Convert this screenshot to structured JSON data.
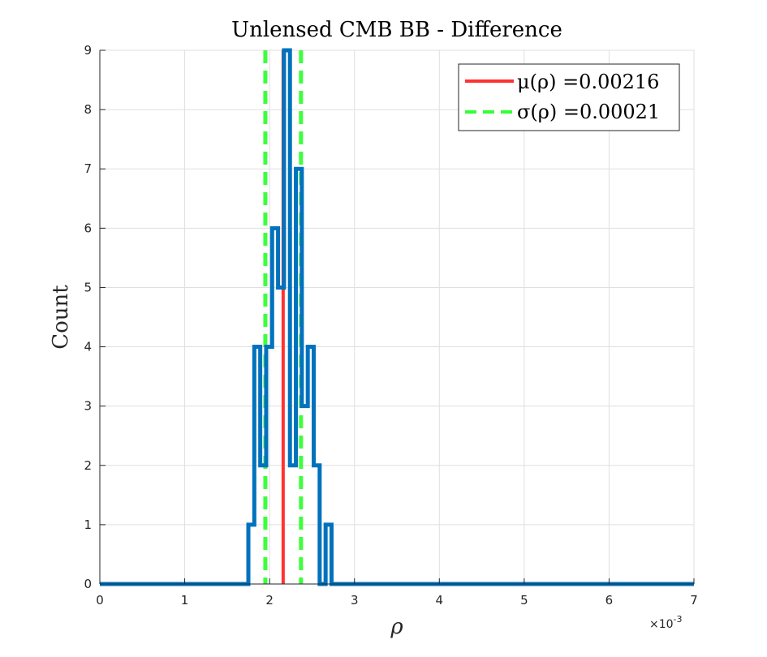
{
  "chart_data": {
    "type": "histogram",
    "title": "Unlensed CMB BB - Difference",
    "xlabel": "ρ",
    "ylabel": "Count",
    "x_exponent_label": "×10",
    "x_exponent_power": "-3",
    "xlim": [
      0,
      0.007
    ],
    "ylim": [
      0,
      9
    ],
    "x_ticks": [
      0,
      0.001,
      0.002,
      0.003,
      0.004,
      0.005,
      0.006,
      0.007
    ],
    "x_tick_labels": [
      "0",
      "1",
      "2",
      "3",
      "4",
      "5",
      "6",
      "7"
    ],
    "y_ticks": [
      0,
      1,
      2,
      3,
      4,
      5,
      6,
      7,
      8,
      9
    ],
    "y_tick_labels": [
      "0",
      "1",
      "2",
      "3",
      "4",
      "5",
      "6",
      "7",
      "8",
      "9"
    ],
    "grid": true,
    "legend_position": "top-right",
    "histogram": {
      "name": "",
      "color": "#0072BD",
      "bin_edges": [
        0,
        0.00175,
        0.00182,
        0.00189,
        0.00196,
        0.00203,
        0.0021,
        0.00217,
        0.00224,
        0.00231,
        0.00238,
        0.00245,
        0.00252,
        0.00259,
        0.00266,
        0.00273,
        0.007
      ],
      "counts": [
        0,
        1,
        4,
        2,
        4,
        6,
        5,
        9,
        2,
        7,
        3,
        4,
        2,
        0,
        1,
        0
      ]
    },
    "mean": {
      "value": 0.00216,
      "color": "#ff3333",
      "legend": "μ(ρ) =0.00216"
    },
    "std": {
      "value": 0.00021,
      "color": "#33ff33",
      "legend": "σ(ρ) =0.00021"
    }
  }
}
